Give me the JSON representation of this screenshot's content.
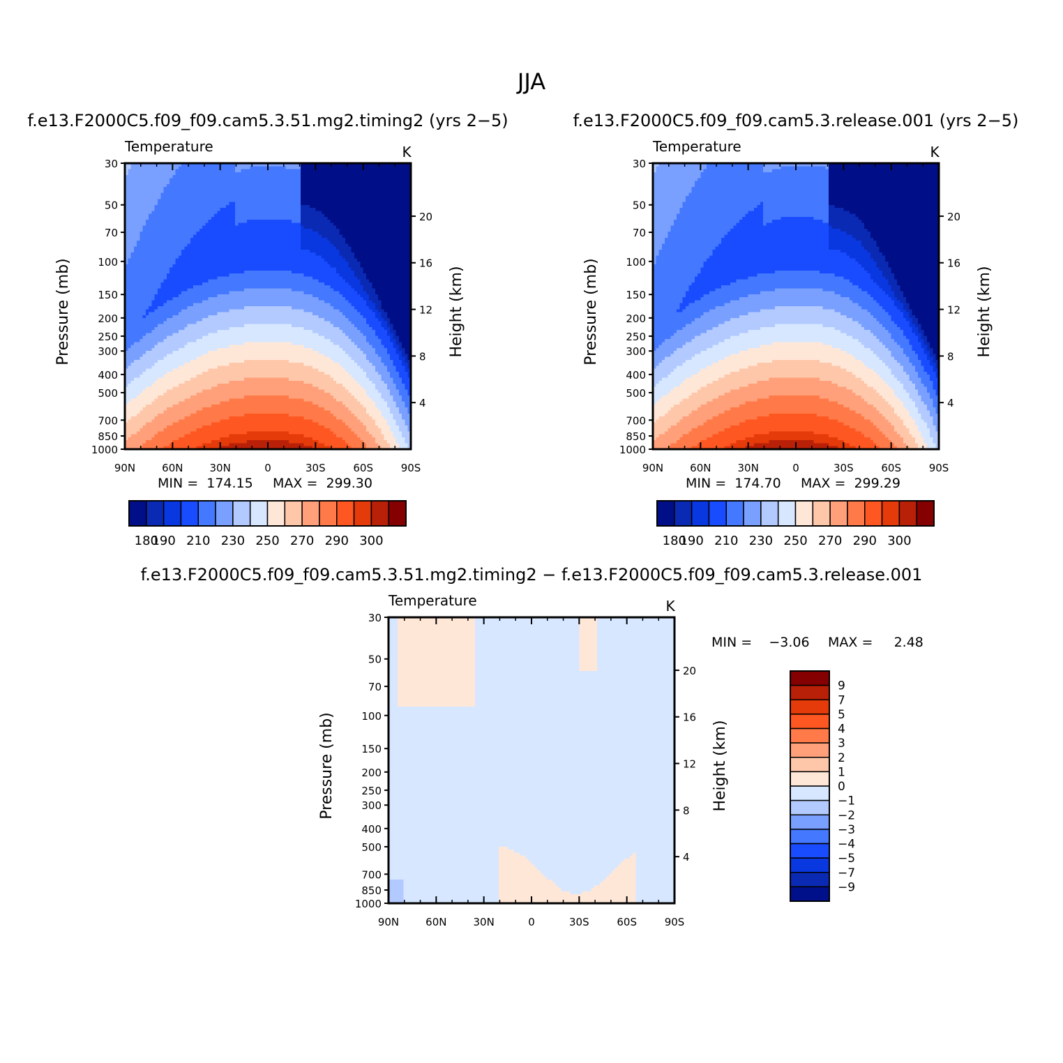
{
  "figure": {
    "title": "JJA"
  },
  "colors": {
    "temp": [
      "#000f87",
      "#0b2ab4",
      "#0937e0",
      "#1a4cff",
      "#4378ff",
      "#7aa0ff",
      "#b2caff",
      "#d6e7ff",
      "#ffe7d8",
      "#ffc7aa",
      "#ffa07a",
      "#ff7a48",
      "#ff5722",
      "#e53a0a",
      "#b82008",
      "#850000"
    ],
    "diff": [
      "#00108a",
      "#0b2ab4",
      "#0937e0",
      "#1a4cff",
      "#4378ff",
      "#7aa0ff",
      "#b2caff",
      "#d6e7ff",
      "#ffe7d8",
      "#ffc7aa",
      "#ffa07a",
      "#ff7a48",
      "#ff5722",
      "#e53a0a",
      "#b82008",
      "#850000"
    ]
  },
  "chart_data": [
    {
      "id": "panel-left",
      "type": "contour",
      "title": "f.e13.F2000C5.f09_f09.cam5.3.51.mg2.timing2 (yrs 2−5)",
      "field_label": "Temperature",
      "units": "K",
      "ylabel": "Pressure (mb)",
      "ylabel_right": "Height (km)",
      "x_ticks": [
        "90N",
        "60N",
        "30N",
        "0",
        "30S",
        "60S",
        "90S"
      ],
      "y_ticks": [
        "30",
        "50",
        "70",
        "100",
        "150",
        "200",
        "250",
        "300",
        "400",
        "500",
        "700",
        "850",
        "1000"
      ],
      "y_right_ticks": [
        "20",
        "16",
        "12",
        "8",
        "4"
      ],
      "min_label": "MIN =  174.15",
      "max_label": "MAX =  299.30",
      "colorbar_labels": [
        "180",
        "190",
        "210",
        "230",
        "250",
        "270",
        "290",
        "300"
      ],
      "levels": [
        180,
        185,
        190,
        200,
        210,
        220,
        230,
        240,
        250,
        260,
        270,
        280,
        290,
        295,
        300
      ]
    },
    {
      "id": "panel-right",
      "type": "contour",
      "title": "f.e13.F2000C5.f09_f09.cam5.3.release.001 (yrs 2−5)",
      "field_label": "Temperature",
      "units": "K",
      "ylabel": "Pressure (mb)",
      "ylabel_right": "Height (km)",
      "x_ticks": [
        "90N",
        "60N",
        "30N",
        "0",
        "30S",
        "60S",
        "90S"
      ],
      "y_ticks": [
        "30",
        "50",
        "70",
        "100",
        "150",
        "200",
        "250",
        "300",
        "400",
        "500",
        "700",
        "850",
        "1000"
      ],
      "y_right_ticks": [
        "20",
        "16",
        "12",
        "8",
        "4"
      ],
      "min_label": "MIN =  174.70",
      "max_label": "MAX =  299.29",
      "colorbar_labels": [
        "180",
        "190",
        "210",
        "230",
        "250",
        "270",
        "290",
        "300"
      ],
      "levels": [
        180,
        185,
        190,
        200,
        210,
        220,
        230,
        240,
        250,
        260,
        270,
        280,
        290,
        295,
        300
      ]
    },
    {
      "id": "panel-diff",
      "type": "contour",
      "title": "f.e13.F2000C5.f09_f09.cam5.3.51.mg2.timing2 − f.e13.F2000C5.f09_f09.cam5.3.release.001",
      "field_label": "Temperature",
      "units": "K",
      "ylabel": "Pressure (mb)",
      "ylabel_right": "Height (km)",
      "x_ticks": [
        "90N",
        "60N",
        "30N",
        "0",
        "30S",
        "60S",
        "90S"
      ],
      "y_ticks": [
        "30",
        "50",
        "70",
        "100",
        "150",
        "200",
        "250",
        "300",
        "400",
        "500",
        "700",
        "850",
        "1000"
      ],
      "y_right_ticks": [
        "20",
        "16",
        "12",
        "8",
        "4"
      ],
      "min_label": "MIN =    −3.06",
      "max_label": "MAX =     2.48",
      "colorbar_labels": [
        "9",
        "7",
        "5",
        "4",
        "3",
        "2",
        "1",
        "0",
        "−1",
        "−2",
        "−3",
        "−4",
        "−5",
        "−7",
        "−9"
      ],
      "levels": [
        -9,
        -7,
        -5,
        -4,
        -3,
        -2,
        -1,
        0,
        1,
        2,
        3,
        4,
        5,
        7,
        9
      ]
    }
  ]
}
